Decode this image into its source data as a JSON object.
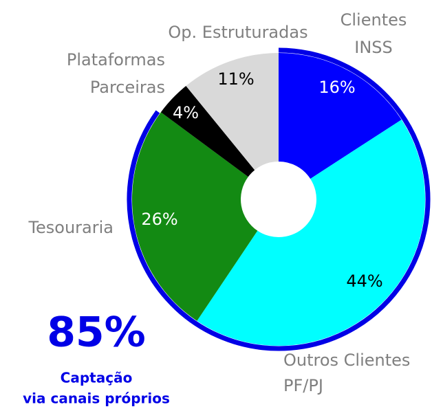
{
  "chart_data": {
    "type": "donut",
    "categories": [
      [
        "Clientes",
        "INSS"
      ],
      [
        "Outros Clientes",
        "PF/PJ"
      ],
      [
        "Tesouraria"
      ],
      [
        "Plataformas",
        "Parceiras"
      ],
      [
        "Op. Estruturadas"
      ]
    ],
    "values": [
      16,
      44,
      26,
      4,
      11
    ],
    "value_labels": [
      "16%",
      "44%",
      "26%",
      "4%",
      "11%"
    ],
    "colors": [
      "#0000ff",
      "#00ffff",
      "#138a13",
      "#000000",
      "#d9d9d9"
    ],
    "callout": {
      "value": 85,
      "label": "85%",
      "caption": [
        "Captação",
        "via canais próprios"
      ],
      "color": "#0000e6"
    }
  }
}
